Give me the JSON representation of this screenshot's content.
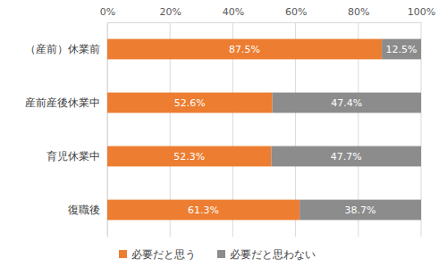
{
  "chart_data": {
    "type": "bar",
    "orientation": "horizontal",
    "stacked": true,
    "data_labels": true,
    "grid": true,
    "legend": "bottom",
    "categories": [
      "（産前）休業前",
      "産前産後休業中",
      "育児休業中",
      "復職後"
    ],
    "series": [
      {
        "name": "必要だと思う",
        "color": "#ed7d31",
        "values": [
          87.5,
          52.6,
          52.3,
          61.3
        ],
        "value_labels": [
          "87.5%",
          "52.6%",
          "52.3%",
          "61.3%"
        ]
      },
      {
        "name": "必要だと思わない",
        "color": "#8c8c8c",
        "values": [
          12.5,
          47.4,
          47.7,
          38.7
        ],
        "value_labels": [
          "12.5%",
          "47.4%",
          "47.7%",
          "38.7%"
        ]
      }
    ],
    "xlim": [
      0,
      100
    ],
    "xticks": [
      {
        "value": 0,
        "label": "0%"
      },
      {
        "value": 20,
        "label": "20%"
      },
      {
        "value": 40,
        "label": "40%"
      },
      {
        "value": 60,
        "label": "60%"
      },
      {
        "value": 80,
        "label": "80%"
      },
      {
        "value": 100,
        "label": "100%"
      }
    ]
  }
}
